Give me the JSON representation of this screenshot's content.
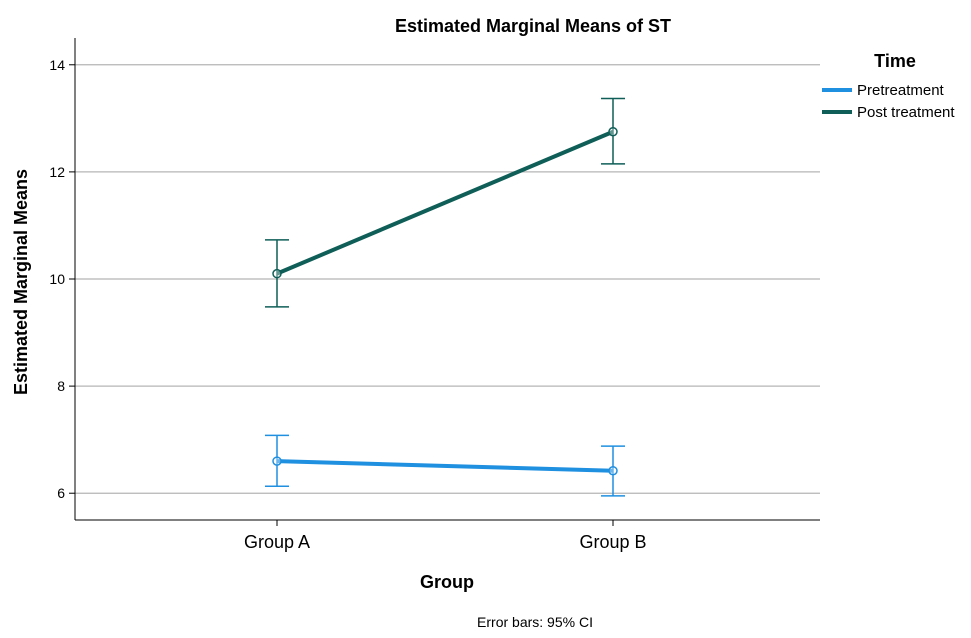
{
  "chart_data": {
    "type": "line",
    "title": "Estimated Marginal Means of ST",
    "xlabel": "Group",
    "ylabel": "Estimated Marginal Means",
    "categories": [
      "Group A",
      "Group B"
    ],
    "ylim": [
      5.5,
      14.5
    ],
    "yticks": [
      6,
      8,
      10,
      12,
      14
    ],
    "grid": true,
    "legend": {
      "title": "Time",
      "placement": "right"
    },
    "series": [
      {
        "name": "Pretreatment",
        "color": "#1f8fe0",
        "values": [
          6.6,
          6.42
        ],
        "ci_low": [
          6.13,
          5.95
        ],
        "ci_high": [
          7.08,
          6.88
        ]
      },
      {
        "name": "Post treatment",
        "color": "#0f5e57",
        "values": [
          10.1,
          12.75
        ],
        "ci_low": [
          9.48,
          12.15
        ],
        "ci_high": [
          10.73,
          13.37
        ]
      }
    ],
    "footnote": "Error bars: 95% CI"
  }
}
